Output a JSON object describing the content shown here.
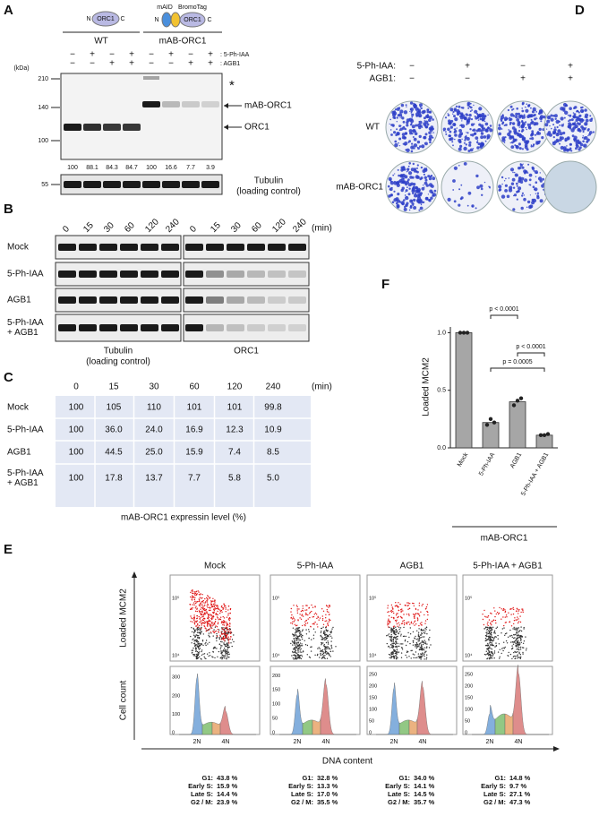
{
  "panel_a": {
    "label": "A",
    "wt_schematic": [
      "N",
      "ORC1",
      "C"
    ],
    "mab_tags": [
      "mAID",
      "BromoTag"
    ],
    "mab_schematic": [
      "N",
      "ORC1",
      "C"
    ],
    "groups": [
      "WT",
      "mAB-ORC1"
    ],
    "treatments": [
      {
        "name": ": 5-Ph-IAA",
        "signs": [
          "−",
          "+",
          "−",
          "+",
          "−",
          "+",
          "−",
          "+"
        ]
      },
      {
        "name": ": AGB1",
        "signs": [
          "−",
          "−",
          "+",
          "+",
          "−",
          "−",
          "+",
          "+"
        ]
      }
    ],
    "unit": "(kDa)",
    "markers": [
      "210",
      "140",
      "100"
    ],
    "tubulin_marker": "55",
    "band_labels": [
      "*",
      "mAB-ORC1",
      "ORC1"
    ],
    "quantification": [
      "100",
      "88.1",
      "84.3",
      "84.7",
      "100",
      "16.6",
      "7.7",
      "3.9"
    ],
    "tubulin_label": [
      "Tubulin",
      "(loading control)"
    ]
  },
  "panel_b": {
    "label": "B",
    "times": [
      "0",
      "15",
      "30",
      "60",
      "120",
      "240"
    ],
    "unit": "(min)",
    "rows": [
      [
        "Mock"
      ],
      [
        "5-Ph-IAA"
      ],
      [
        "AGB1"
      ],
      [
        "5-Ph-IAA",
        "+ AGB1"
      ]
    ],
    "blots": [
      [
        "Tubulin",
        "(loading control)"
      ],
      [
        "ORC1"
      ]
    ]
  },
  "panel_c": {
    "label": "C",
    "header": [
      "0",
      "15",
      "30",
      "60",
      "120",
      "240"
    ],
    "unit": "(min)",
    "rows": [
      {
        "label": [
          "Mock"
        ],
        "cells": [
          "100",
          "105",
          "110",
          "101",
          "101",
          "99.8"
        ]
      },
      {
        "label": [
          "5-Ph-IAA"
        ],
        "cells": [
          "100",
          "36.0",
          "24.0",
          "16.9",
          "12.3",
          "10.9"
        ]
      },
      {
        "label": [
          "AGB1"
        ],
        "cells": [
          "100",
          "44.5",
          "25.0",
          "15.9",
          "7.4",
          "8.5"
        ]
      },
      {
        "label": [
          "5-Ph-IAA",
          "+ AGB1"
        ],
        "cells": [
          "100",
          "17.8",
          "13.7",
          "7.7",
          "5.8",
          "5.0"
        ]
      }
    ],
    "caption": "mAB-ORC1 expressin level (%)"
  },
  "panel_d": {
    "label": "D",
    "treatments": [
      {
        "name": "5-Ph-IAA:",
        "signs": [
          "−",
          "+",
          "−",
          "+"
        ]
      },
      {
        "name": "AGB1:",
        "signs": [
          "−",
          "−",
          "+",
          "+"
        ]
      }
    ],
    "rows": [
      "WT",
      "mAB-ORC1"
    ]
  },
  "panel_e": {
    "label": "E",
    "conditions": [
      "Mock",
      "5-Ph-IAA",
      "AGB1",
      "5-Ph-IAA + AGB1"
    ],
    "y_labels": [
      "Loaded MCM2",
      "Cell count"
    ],
    "x_label": "DNA content",
    "scatter_ticks": [
      "10⁵",
      "10⁴"
    ],
    "hist_ticks": [
      [
        "0",
        "100",
        "200",
        "300"
      ],
      [
        "0",
        "50",
        "100",
        "150",
        "200"
      ],
      [
        "0",
        "50",
        "100",
        "150",
        "200",
        "250"
      ],
      [
        "0",
        "50",
        "100",
        "150",
        "200",
        "250"
      ]
    ],
    "ploidy": [
      "2N",
      "4N"
    ],
    "phase_names": [
      "G1:",
      "Early S:",
      "Late S:",
      "G2 / M:"
    ],
    "phase_colors": [
      "#3a78d0",
      "#3a9a3a",
      "#e07a30",
      "#d03a3a"
    ],
    "phases": [
      [
        "43.8 %",
        "15.9 %",
        "14.4 %",
        "23.9 %"
      ],
      [
        "32.8 %",
        "13.3 %",
        "17.0 %",
        "35.5 %"
      ],
      [
        "34.0 %",
        "14.1 %",
        "14.5 %",
        "35.7 %"
      ],
      [
        "14.8 %",
        "9.7 %",
        "27.1 %",
        "47.3 %"
      ]
    ]
  },
  "chart_data": {
    "type": "bar",
    "label": "F",
    "ylabel": "Loaded  MCM2",
    "categories": [
      "Mock",
      "5-Ph-IAA",
      "AGB1",
      "5-Ph-IAA + AGB1"
    ],
    "values": [
      1.0,
      0.22,
      0.4,
      0.11
    ],
    "points": [
      [
        1.0,
        1.0,
        1.0
      ],
      [
        0.2,
        0.25,
        0.22
      ],
      [
        0.37,
        0.41,
        0.43
      ],
      [
        0.11,
        0.11,
        0.12
      ]
    ],
    "color": "#a6a6a6",
    "ylim": [
      0,
      1.05
    ],
    "yticks": [
      {
        "value": 0,
        "label": "0.0"
      },
      {
        "value": 0.5,
        "label": "0.5"
      },
      {
        "value": 1,
        "label": "1.0"
      }
    ],
    "group_label": "mAB-ORC1",
    "comparisons": [
      {
        "pair": [
          1,
          2
        ],
        "label": "p < 0.0001"
      },
      {
        "pair": [
          2,
          3
        ],
        "label": "p < 0.0001"
      },
      {
        "pair": [
          1,
          3
        ],
        "label": "p = 0.0005"
      }
    ]
  }
}
